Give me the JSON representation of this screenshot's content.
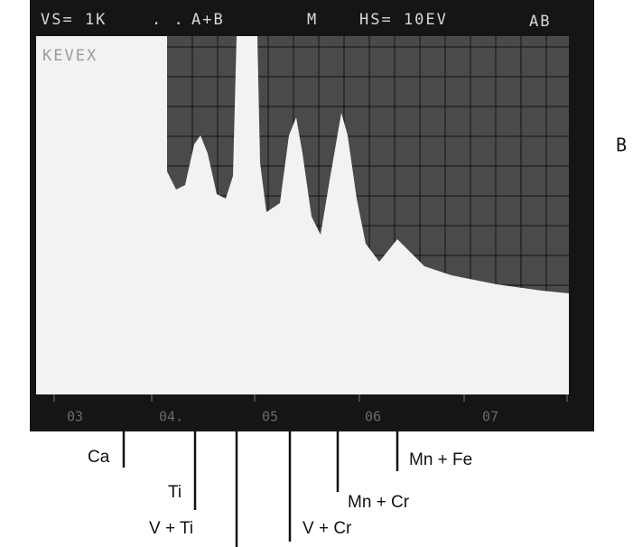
{
  "screen": {
    "header": [
      "VS= 1K",
      ". .",
      "A+B",
      "M",
      "HS= 10EV",
      "AB"
    ],
    "brand": "KEVEX",
    "x_tick_labels": [
      "03",
      "04.",
      "05",
      "06",
      "07"
    ]
  },
  "panel_label": "B",
  "annotations": [
    {
      "label": "Ca"
    },
    {
      "label": "Ti"
    },
    {
      "label": "V + Ti"
    },
    {
      "label": "V + Cr"
    },
    {
      "label": "Mn + Cr"
    },
    {
      "label": "Mn + Fe"
    }
  ]
}
